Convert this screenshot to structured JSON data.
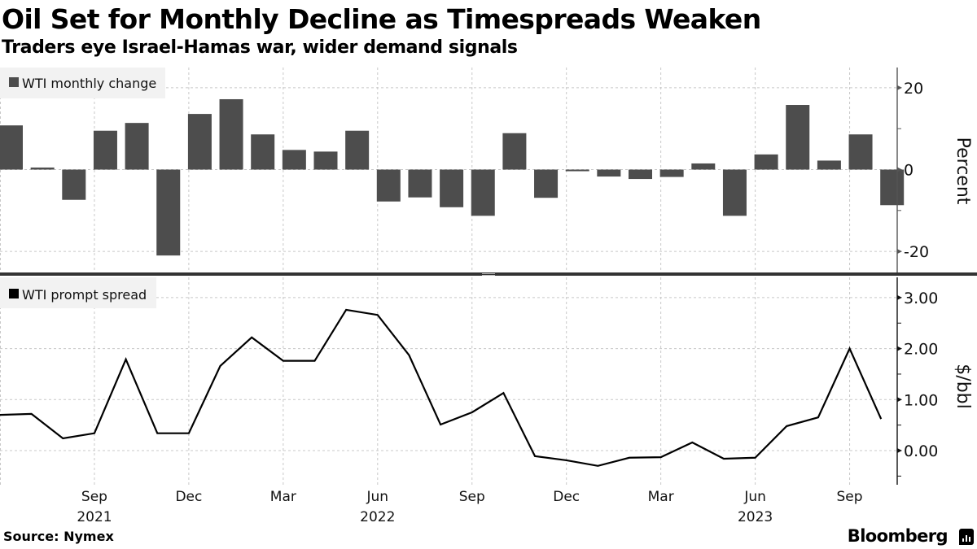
{
  "header": {
    "title": "Oil Set for Monthly Decline as Timespreads Weaken",
    "subtitle": "Traders eye Israel-Hamas war, wider demand signals"
  },
  "footer": {
    "source": "Source: Nymex",
    "brand": "Bloomberg",
    "brand_icon": "bloomberg-chart-icon"
  },
  "colors": {
    "bar": "#4d4d4d",
    "line": "#000000",
    "grid": "#c8c8c8",
    "legend_bg": "#f2f2f2",
    "divider": "#333333"
  },
  "chart_data": [
    {
      "type": "bar",
      "legend": "WTI monthly change",
      "legend_placement": "top-left",
      "ylabel": "Percent",
      "ylim": [
        -25,
        25
      ],
      "yticks": [
        "20",
        "0",
        "-20"
      ],
      "ytick_values": [
        20,
        0,
        -20
      ],
      "grid": true,
      "categories": [
        "Jun 2021",
        "Jul 2021",
        "Aug 2021",
        "Sep 2021",
        "Oct 2021",
        "Nov 2021",
        "Dec 2021",
        "Jan 2022",
        "Feb 2022",
        "Mar 2022",
        "Apr 2022",
        "May 2022",
        "Jun 2022",
        "Jul 2022",
        "Aug 2022",
        "Sep 2022",
        "Oct 2022",
        "Nov 2022",
        "Dec 2022",
        "Jan 2023",
        "Feb 2023",
        "Mar 2023",
        "Apr 2023",
        "May 2023",
        "Jun 2023",
        "Jul 2023",
        "Aug 2023",
        "Sep 2023",
        "Oct 2023"
      ],
      "values": [
        10.8,
        0.5,
        -7.4,
        9.5,
        11.4,
        -21.0,
        13.6,
        17.2,
        8.6,
        4.8,
        4.4,
        9.5,
        -7.8,
        -6.8,
        -9.2,
        -11.3,
        8.9,
        -6.9,
        -0.4,
        -1.7,
        -2.3,
        -1.8,
        1.5,
        -11.3,
        3.7,
        15.8,
        2.2,
        8.6,
        -8.7
      ]
    },
    {
      "type": "line",
      "legend": "WTI prompt spread",
      "legend_placement": "top-left",
      "ylabel": "$/bbl",
      "ylim": [
        -0.7,
        3.4
      ],
      "yticks": [
        "3.00",
        "2.00",
        "1.00",
        "0.00"
      ],
      "ytick_values": [
        3,
        2,
        1,
        0
      ],
      "grid": true,
      "x": [
        "Jun 2021",
        "Jul 2021",
        "Aug 2021",
        "Sep 2021",
        "Oct 2021",
        "Nov 2021",
        "Dec 2021",
        "Jan 2022",
        "Feb 2022",
        "Mar 2022",
        "Apr 2022",
        "May 2022",
        "Jun 2022",
        "Jul 2022",
        "Aug 2022",
        "Sep 2022",
        "Oct 2022",
        "Nov 2022",
        "Dec 2022",
        "Jan 2023",
        "Feb 2023",
        "Mar 2023",
        "Apr 2023",
        "May 2023",
        "Jun 2023",
        "Jul 2023",
        "Aug 2023",
        "Sep 2023",
        "Oct 2023"
      ],
      "values": [
        0.7,
        0.72,
        0.24,
        0.34,
        1.79,
        0.34,
        0.34,
        1.66,
        2.22,
        1.76,
        1.76,
        2.76,
        2.66,
        1.87,
        0.51,
        0.75,
        1.13,
        -0.11,
        -0.19,
        -0.3,
        -0.14,
        -0.13,
        0.16,
        -0.16,
        -0.14,
        0.48,
        0.65,
        2.0,
        0.62
      ]
    }
  ],
  "xaxis": {
    "ticks": [
      {
        "month": "Sep",
        "year": "2021",
        "index": 3
      },
      {
        "month": "Dec",
        "year": "",
        "index": 6
      },
      {
        "month": "Mar",
        "year": "",
        "index": 9
      },
      {
        "month": "Jun",
        "year": "2022",
        "index": 12
      },
      {
        "month": "Sep",
        "year": "",
        "index": 15
      },
      {
        "month": "Dec",
        "year": "",
        "index": 18
      },
      {
        "month": "Mar",
        "year": "",
        "index": 21
      },
      {
        "month": "Jun",
        "year": "2023",
        "index": 24
      },
      {
        "month": "Sep",
        "year": "",
        "index": 27
      }
    ]
  }
}
